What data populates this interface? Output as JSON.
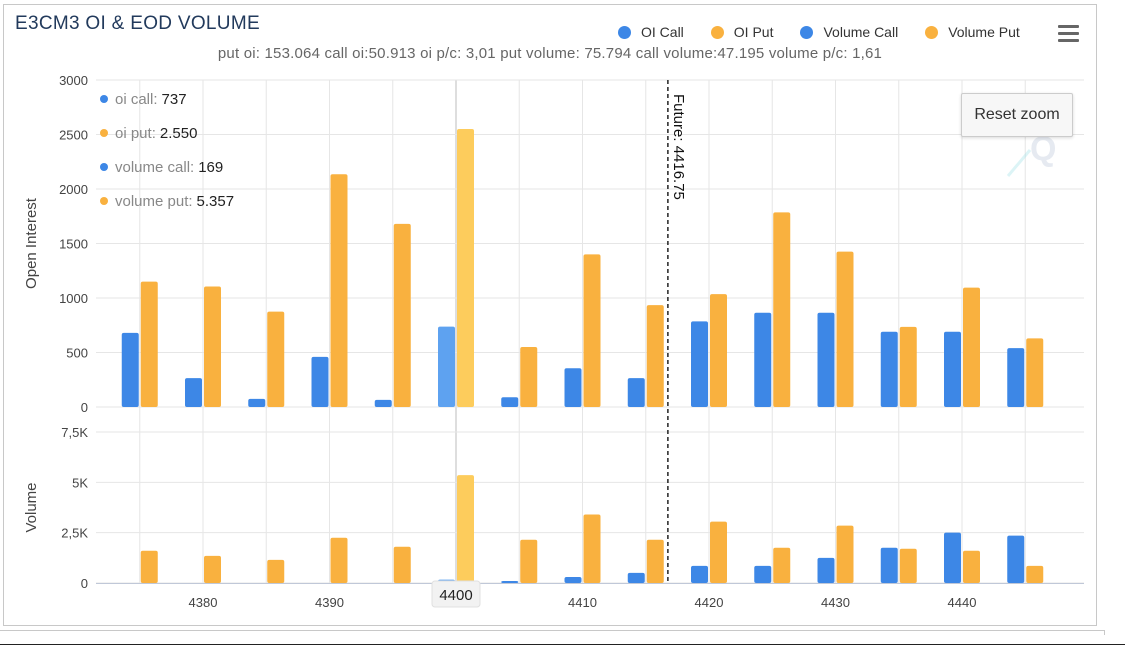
{
  "header": {
    "title": "E3CM3 OI & EOD VOLUME",
    "subtitle": "put oi: 153.064 call oi:50.913 oi p/c: 3,01 put volume: 75.794 call volume:47.195 volume p/c: 1,61"
  },
  "legend": [
    {
      "label": "OI Call",
      "color": "#3d87e6"
    },
    {
      "label": "OI Put",
      "color": "#f9b13f"
    },
    {
      "label": "Volume Call",
      "color": "#3d87e6"
    },
    {
      "label": "Volume Put",
      "color": "#f9b13f"
    }
  ],
  "toolbar": {
    "reset_zoom_label": "Reset zoom",
    "menu_icon": "hamburger-menu-icon"
  },
  "tooltip": {
    "rows": [
      {
        "label": "oi call:",
        "value": "737",
        "color": "#3d87e6"
      },
      {
        "label": "oi put:",
        "value": "2.550",
        "color": "#f9b13f"
      },
      {
        "label": "volume call:",
        "value": "169",
        "color": "#3d87e6"
      },
      {
        "label": "volume put:",
        "value": "5.357",
        "color": "#f9b13f"
      }
    ]
  },
  "chart_data": {
    "type": "bar",
    "x": [
      4375,
      4380,
      4385,
      4390,
      4395,
      4400,
      4405,
      4410,
      4415,
      4420,
      4425,
      4430,
      4435,
      4440,
      4445
    ],
    "xticks": [
      "4380",
      "4390",
      "4400",
      "4410",
      "4420",
      "4430",
      "4440"
    ],
    "xtick_values": [
      4380,
      4390,
      4400,
      4410,
      4420,
      4430,
      4440
    ],
    "highlight_x": 4400,
    "highlight_label": "4400",
    "future_line": {
      "x": 4416.75,
      "label": "Future: 4416.75"
    },
    "panels": [
      {
        "ylabel": "Open Interest",
        "ylim": [
          0,
          3000
        ],
        "yticks": [
          0,
          500,
          1000,
          1500,
          2000,
          2500,
          3000
        ],
        "ytick_labels": [
          "0",
          "500",
          "1000",
          "1500",
          "2000",
          "2500",
          "3000"
        ],
        "series": [
          {
            "name": "OI Call",
            "color": "#3d87e6",
            "values": [
              680,
              265,
              75,
              460,
              65,
              737,
              90,
              355,
              265,
              785,
              865,
              865,
              690,
              690,
              540
            ]
          },
          {
            "name": "OI Put",
            "color": "#f9b13f",
            "values": [
              1150,
              1105,
              875,
              2135,
              1680,
              2550,
              550,
              1400,
              935,
              1035,
              1785,
              1425,
              735,
              1095,
              630
            ]
          }
        ]
      },
      {
        "ylabel": "Volume",
        "ylim": [
          0,
          7500
        ],
        "yticks": [
          0,
          2500,
          5000,
          7500
        ],
        "ytick_labels": [
          "0",
          "2,5K",
          "5K",
          "7,5K"
        ],
        "series": [
          {
            "name": "Volume Call",
            "color": "#3d87e6",
            "values": [
              0,
              0,
              0,
              0,
              0,
              169,
              100,
              300,
              500,
              850,
              850,
              1250,
              1750,
              2500,
              2350
            ]
          },
          {
            "name": "Volume Put",
            "color": "#f9b13f",
            "values": [
              1600,
              1350,
              1150,
              2250,
              1800,
              5357,
              2150,
              3400,
              2150,
              3050,
              1750,
              2850,
              1700,
              1600,
              850
            ]
          }
        ]
      }
    ],
    "grid": true
  }
}
